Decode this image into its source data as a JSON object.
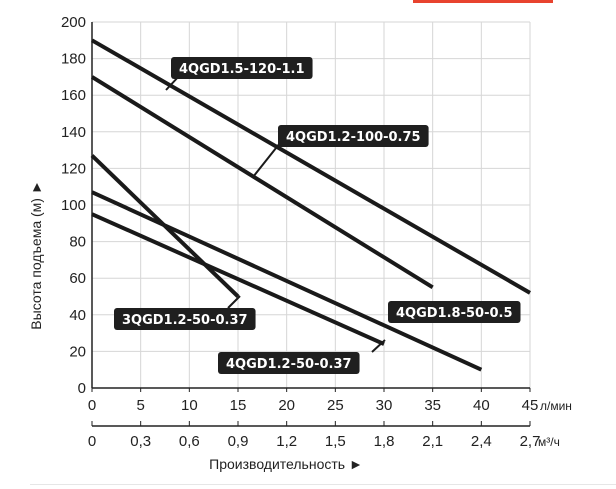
{
  "chart_data": {
    "type": "line",
    "xlabel": "Производительность ►",
    "ylabel": "Высота подъема (м) ►",
    "x_unit": "л/мин",
    "x2_unit": "м³/ч",
    "xlim": [
      0,
      45
    ],
    "ylim": [
      0,
      200
    ],
    "x_ticks": [
      "0",
      "5",
      "10",
      "15",
      "20",
      "25",
      "30",
      "35",
      "40",
      "45"
    ],
    "x2_ticks": [
      "0",
      "0,3",
      "0,6",
      "0,9",
      "1,2",
      "1,5",
      "1,8",
      "2,1",
      "2,4",
      "2,7"
    ],
    "y_ticks": [
      "0",
      "20",
      "40",
      "60",
      "80",
      "100",
      "120",
      "140",
      "160",
      "180",
      "200"
    ],
    "grid": true,
    "series": [
      {
        "name": "4QGD1.5-120-1.1",
        "x": [
          0,
          45
        ],
        "y": [
          190,
          52
        ]
      },
      {
        "name": "4QGD1.2-100-0.75",
        "x": [
          0,
          35
        ],
        "y": [
          170,
          55
        ]
      },
      {
        "name": "3QGD1.2-50-0.37",
        "x": [
          0,
          15
        ],
        "y": [
          127,
          50
        ]
      },
      {
        "name": "4QGD1.8-50-0.5",
        "x": [
          0,
          40
        ],
        "y": [
          107,
          10
        ]
      },
      {
        "name": "4QGD1.2-50-0.37",
        "x": [
          0,
          30
        ],
        "y": [
          95,
          24
        ]
      }
    ]
  }
}
